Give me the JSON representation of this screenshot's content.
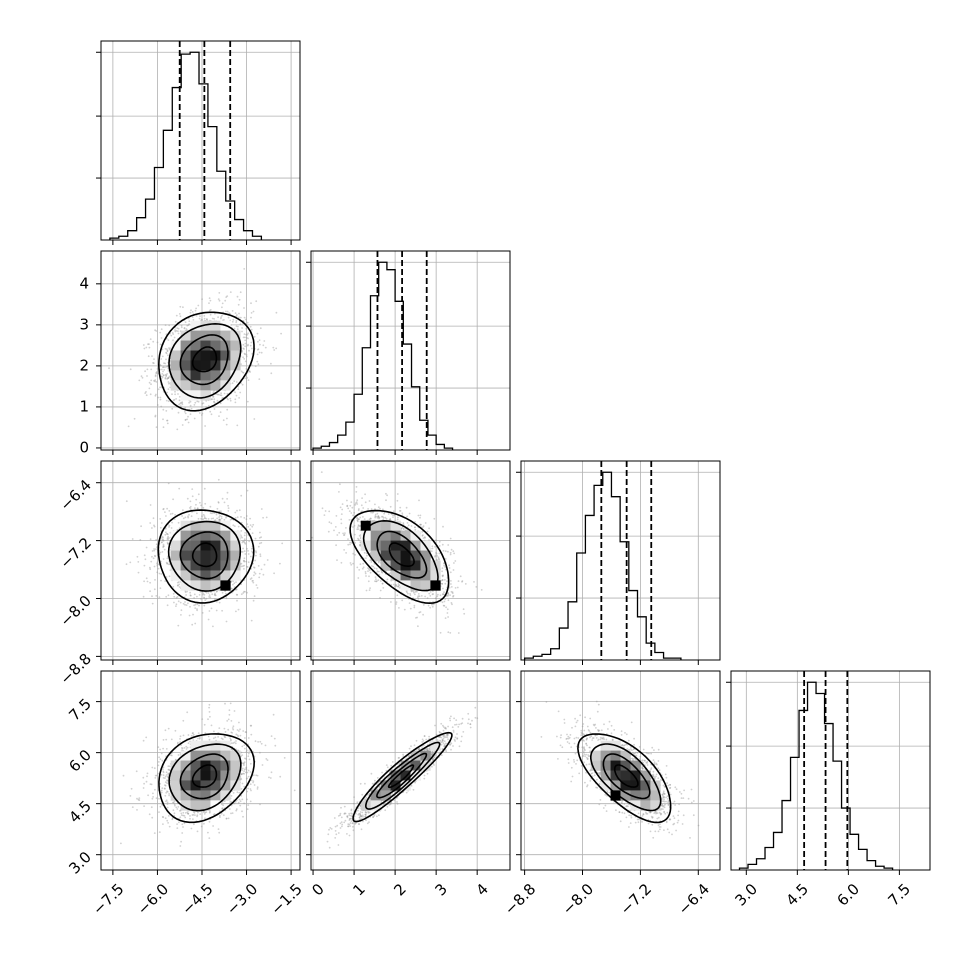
{
  "chart_data": [
    {
      "type": "histogram",
      "variable_index": 0,
      "xlim": [
        -7.9,
        -1.2
      ],
      "bins": {
        "start": -7.6,
        "step": 0.3,
        "counts": [
          1,
          2,
          5,
          12,
          22,
          39,
          59,
          82,
          100,
          101,
          84,
          61,
          37,
          21,
          11,
          5,
          2
        ]
      },
      "quantiles": [
        -5.25,
        -4.42,
        -3.55
      ],
      "grid": true
    },
    {
      "type": "contour_scatter",
      "x_variable": 0,
      "y_variable": 1,
      "xlim": [
        -7.9,
        -1.2
      ],
      "ylim": [
        -0.05,
        4.8
      ],
      "mean": [
        -4.4,
        2.15
      ],
      "sd": [
        0.8,
        0.6
      ],
      "correlation": 0.2,
      "grid": true
    },
    {
      "type": "histogram",
      "variable_index": 1,
      "xlim": [
        -0.05,
        4.8
      ],
      "bins": {
        "start": 0.0,
        "step": 0.2,
        "counts": [
          1,
          2,
          4,
          8,
          15,
          30,
          55,
          83,
          101,
          97,
          80,
          57,
          34,
          16,
          8,
          3,
          1
        ]
      },
      "quantiles": [
        1.57,
        2.17,
        2.77
      ],
      "grid": true
    },
    {
      "type": "contour_scatter",
      "x_variable": 0,
      "y_variable": 2,
      "xlim": [
        -7.9,
        -1.2
      ],
      "ylim": [
        -8.85,
        -6.1
      ],
      "mean": [
        -4.4,
        -7.4
      ],
      "sd": [
        0.8,
        0.32
      ],
      "correlation": 0.0,
      "grid": true
    },
    {
      "type": "contour_scatter",
      "x_variable": 1,
      "y_variable": 2,
      "xlim": [
        -0.05,
        4.8
      ],
      "ylim": [
        -8.85,
        -6.1
      ],
      "mean": [
        2.15,
        -7.4
      ],
      "sd": [
        0.6,
        0.32
      ],
      "correlation": -0.55,
      "grid": true
    },
    {
      "type": "histogram",
      "variable_index": 2,
      "xlim": [
        -8.85,
        -6.1
      ],
      "bins": {
        "start": -8.8,
        "step": 0.12,
        "counts": [
          1,
          2,
          3,
          6,
          17,
          31,
          57,
          77,
          93,
          100,
          87,
          63,
          37,
          23,
          9,
          4,
          1,
          1
        ]
      },
      "quantiles": [
        -7.74,
        -7.39,
        -7.05
      ],
      "grid": true
    },
    {
      "type": "contour_scatter",
      "x_variable": 0,
      "y_variable": 3,
      "xlim": [
        -7.9,
        -1.2
      ],
      "ylim": [
        2.55,
        8.4
      ],
      "mean": [
        -4.4,
        5.3
      ],
      "sd": [
        0.8,
        0.65
      ],
      "correlation": 0.25,
      "grid": true
    },
    {
      "type": "contour_scatter",
      "x_variable": 1,
      "y_variable": 3,
      "xlim": [
        -0.05,
        4.8
      ],
      "ylim": [
        2.55,
        8.4
      ],
      "mean": [
        2.15,
        5.3
      ],
      "sd": [
        0.6,
        0.65
      ],
      "correlation": 0.93,
      "grid": true
    },
    {
      "type": "contour_scatter",
      "x_variable": 2,
      "y_variable": 3,
      "xlim": [
        -8.85,
        -6.1
      ],
      "ylim": [
        2.55,
        8.4
      ],
      "mean": [
        -7.4,
        5.3
      ],
      "sd": [
        0.32,
        0.65
      ],
      "correlation": -0.65,
      "grid": true
    },
    {
      "type": "histogram",
      "variable_index": 3,
      "xlim": [
        2.55,
        8.4
      ],
      "bins": {
        "start": 2.8,
        "step": 0.25,
        "counts": [
          1,
          3,
          6,
          12,
          20,
          37,
          60,
          85,
          100,
          94,
          78,
          58,
          33,
          19,
          11,
          5,
          2,
          1
        ]
      },
      "quantiles": [
        4.7,
        5.33,
        5.97
      ],
      "grid": true
    }
  ],
  "axes": {
    "x_tick_labels": [
      [
        "−7.5",
        "−6.0",
        "−4.5",
        "−3.0",
        "−1.5"
      ],
      [
        "0",
        "1",
        "2",
        "3",
        "4"
      ],
      [
        "−8.8",
        "−8.0",
        "−7.2",
        "−6.4"
      ],
      [
        "3.0",
        "4.5",
        "6.0",
        "7.5"
      ]
    ],
    "y_tick_labels": {
      "row1": [
        "0",
        "1",
        "2",
        "3",
        "4"
      ],
      "row2": [
        "−8.8",
        "−8.0",
        "−7.2",
        "−6.4"
      ],
      "row3": [
        "3.0",
        "4.5",
        "6.0",
        "7.5"
      ]
    }
  }
}
